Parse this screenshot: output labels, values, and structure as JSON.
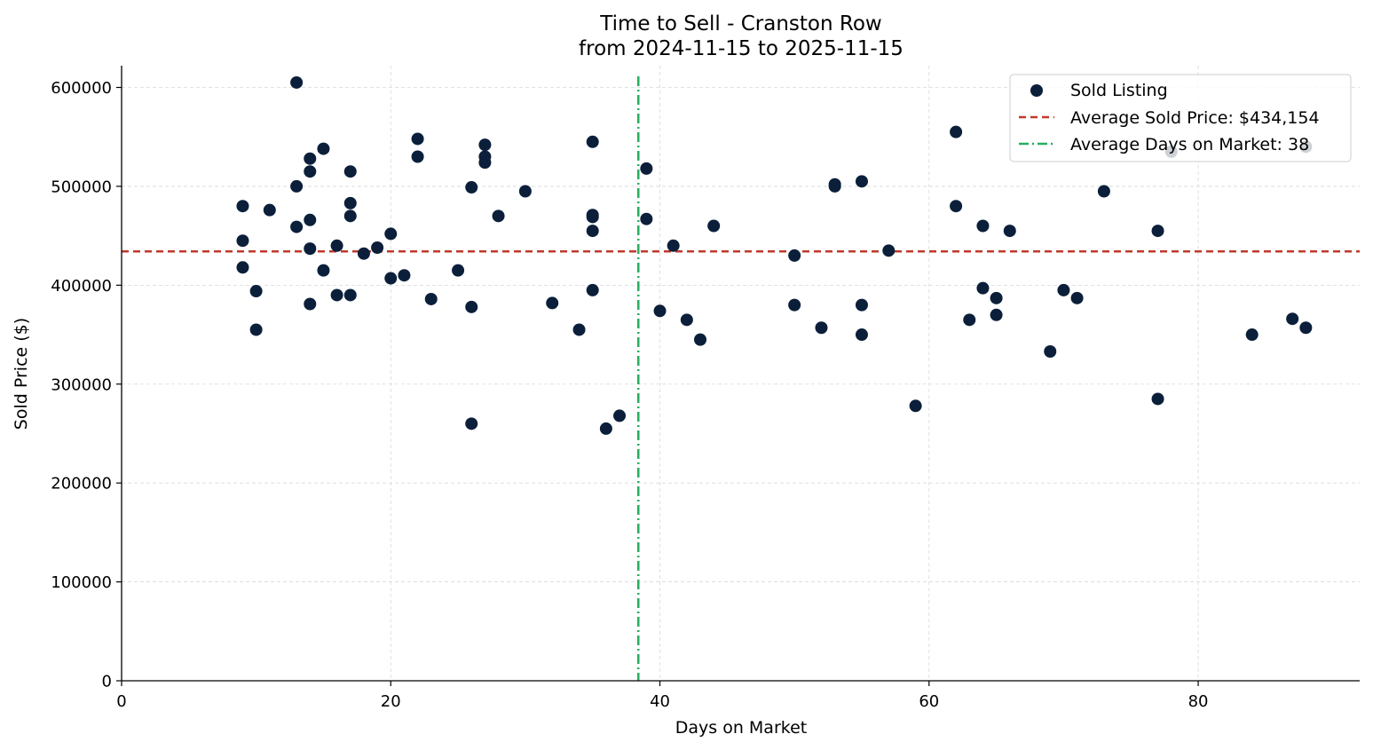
{
  "chart_data": {
    "type": "scatter",
    "title": "Time to Sell - Cranston Row",
    "subtitle": "from 2024-11-15 to 2025-11-15",
    "xlabel": "Days on Market",
    "ylabel": "Sold Price ($)",
    "xlim": [
      0,
      92
    ],
    "ylim": [
      0,
      622000
    ],
    "xticks": [
      0,
      20,
      40,
      60,
      80
    ],
    "yticks": [
      0,
      100000,
      200000,
      300000,
      400000,
      500000,
      600000
    ],
    "grid": true,
    "legend_position": "top-right",
    "colors": {
      "points": "#0b1f3a",
      "avg_price": "#c0392b",
      "avg_days": "#27ae60"
    },
    "series": [
      {
        "name": "Sold Listing",
        "points": [
          [
            9,
            480000
          ],
          [
            9,
            445000
          ],
          [
            9,
            418000
          ],
          [
            10,
            394000
          ],
          [
            10,
            355000
          ],
          [
            11,
            476000
          ],
          [
            13,
            605000
          ],
          [
            13,
            500000
          ],
          [
            13,
            459000
          ],
          [
            14,
            528000
          ],
          [
            14,
            515000
          ],
          [
            14,
            466000
          ],
          [
            14,
            437000
          ],
          [
            14,
            381000
          ],
          [
            15,
            538000
          ],
          [
            15,
            415000
          ],
          [
            16,
            440000
          ],
          [
            16,
            390000
          ],
          [
            17,
            515000
          ],
          [
            17,
            483000
          ],
          [
            17,
            470000
          ],
          [
            17,
            390000
          ],
          [
            18,
            432000
          ],
          [
            19,
            438000
          ],
          [
            20,
            452000
          ],
          [
            20,
            407000
          ],
          [
            21,
            410000
          ],
          [
            22,
            548000
          ],
          [
            22,
            530000
          ],
          [
            23,
            386000
          ],
          [
            25,
            415000
          ],
          [
            26,
            499000
          ],
          [
            26,
            378000
          ],
          [
            26,
            260000
          ],
          [
            27,
            542000
          ],
          [
            27,
            530000
          ],
          [
            27,
            524000
          ],
          [
            28,
            470000
          ],
          [
            30,
            495000
          ],
          [
            32,
            382000
          ],
          [
            34,
            355000
          ],
          [
            35,
            545000
          ],
          [
            35,
            471000
          ],
          [
            35,
            469000
          ],
          [
            35,
            455000
          ],
          [
            35,
            395000
          ],
          [
            36,
            255000
          ],
          [
            37,
            268000
          ],
          [
            39,
            518000
          ],
          [
            39,
            467000
          ],
          [
            40,
            374000
          ],
          [
            41,
            440000
          ],
          [
            42,
            365000
          ],
          [
            43,
            345000
          ],
          [
            44,
            460000
          ],
          [
            50,
            430000
          ],
          [
            50,
            380000
          ],
          [
            52,
            357000
          ],
          [
            53,
            502000
          ],
          [
            53,
            500000
          ],
          [
            55,
            505000
          ],
          [
            55,
            380000
          ],
          [
            55,
            350000
          ],
          [
            57,
            435000
          ],
          [
            59,
            278000
          ],
          [
            62,
            555000
          ],
          [
            62,
            480000
          ],
          [
            63,
            365000
          ],
          [
            64,
            460000
          ],
          [
            64,
            397000
          ],
          [
            65,
            387000
          ],
          [
            65,
            370000
          ],
          [
            66,
            455000
          ],
          [
            69,
            333000
          ],
          [
            70,
            395000
          ],
          [
            71,
            387000
          ],
          [
            73,
            495000
          ],
          [
            77,
            455000
          ],
          [
            77,
            285000
          ],
          [
            78,
            535000
          ],
          [
            84,
            350000
          ],
          [
            87,
            366000
          ],
          [
            88,
            540000
          ],
          [
            88,
            357000
          ]
        ]
      }
    ],
    "avg_price": 434154,
    "avg_days": 38.4,
    "legend": {
      "sold_listing": "Sold Listing",
      "avg_price": "Average Sold Price: $434,154",
      "avg_days": "Average Days on Market: 38"
    }
  }
}
